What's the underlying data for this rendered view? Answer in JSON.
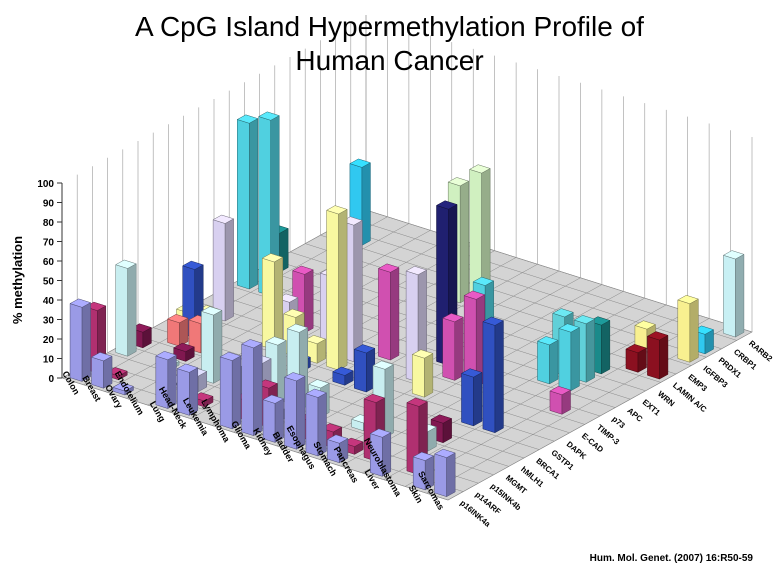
{
  "title_line1": "A CpG Island Hypermethylation Profile of",
  "title_line2": "Human Cancer",
  "citation": "Hum. Mol. Genet. (2007) 16:R50-59",
  "chart_data": {
    "type": "bar",
    "variant": "3d-grouped",
    "ylabel": "% methylation",
    "ylim": [
      0,
      100
    ],
    "yticks": [
      0,
      10,
      20,
      30,
      40,
      50,
      60,
      70,
      80,
      90,
      100
    ],
    "grid": true,
    "cancers": [
      "Colon",
      "Breast",
      "Ovary",
      "Endotelium",
      "Lung",
      "Head-Neck",
      "Leukemia",
      "Lymphoma",
      "Glioma",
      "Kidney",
      "Bladder",
      "Esophagus",
      "Stomach",
      "Pancreas",
      "Liver",
      "Neuroblastoma",
      "Skin",
      "Sarcomas"
    ],
    "genes": [
      "p16INK4a",
      "p14ARF",
      "p15INK4b",
      "MGMT",
      "hMLH1",
      "BRCA1",
      "GSTP1",
      "DAPK",
      "E-CAD",
      "TIMP-3",
      "p73",
      "APC",
      "EXT1",
      "WRN",
      "LAMIN A/C",
      "EMP3",
      "IGFBP3",
      "PRDX1",
      "CRBP1",
      "RARB2"
    ],
    "gene_colors": [
      "#9a9ae6",
      "#b03070",
      "#c8c8f0",
      "#c8eef0",
      "#801850",
      "#f07878",
      "#3050c0",
      "#f8f8a0",
      "#d8d0f0",
      "#d050b0",
      "#202070",
      "#50d0e0",
      "#60d0d8",
      "#1a8a8a",
      "#8b1020",
      "#d0f0c0",
      "#f8f090",
      "#30c8f0",
      "#700020",
      "#c8f0f4"
    ],
    "values": [
      [
        38,
        32,
        0,
        45,
        8,
        0,
        0,
        5,
        0,
        0,
        0,
        85,
        0,
        20,
        0,
        0,
        0,
        0,
        0,
        0
      ],
      [
        14,
        2,
        0,
        0,
        0,
        12,
        35,
        8,
        50,
        0,
        0,
        90,
        0,
        0,
        0,
        0,
        0,
        40,
        0,
        0
      ],
      [
        2,
        0,
        0,
        2,
        5,
        15,
        0,
        0,
        0,
        0,
        0,
        0,
        0,
        0,
        0,
        0,
        0,
        0,
        0,
        0
      ],
      [
        0,
        0,
        1,
        0,
        0,
        0,
        0,
        0,
        0,
        0,
        0,
        0,
        0,
        0,
        0,
        0,
        0,
        0,
        0,
        0
      ],
      [
        25,
        0,
        8,
        35,
        0,
        0,
        0,
        45,
        20,
        30,
        0,
        0,
        0,
        0,
        0,
        0,
        0,
        0,
        0,
        0
      ],
      [
        22,
        3,
        0,
        4,
        0,
        0,
        0,
        20,
        0,
        0,
        0,
        0,
        0,
        0,
        0,
        0,
        0,
        0,
        0,
        0
      ],
      [
        0,
        0,
        20,
        0,
        0,
        0,
        5,
        10,
        40,
        0,
        0,
        0,
        0,
        0,
        0,
        0,
        0,
        0,
        0,
        0
      ],
      [
        35,
        10,
        25,
        30,
        4,
        0,
        0,
        80,
        70,
        0,
        0,
        0,
        0,
        0,
        0,
        60,
        0,
        0,
        0,
        0
      ],
      [
        45,
        20,
        5,
        40,
        0,
        0,
        5,
        0,
        0,
        45,
        0,
        0,
        0,
        0,
        0,
        70,
        0,
        0,
        0,
        0
      ],
      [
        20,
        0,
        0,
        15,
        0,
        0,
        20,
        0,
        0,
        0,
        0,
        0,
        0,
        0,
        0,
        0,
        0,
        0,
        0,
        0
      ],
      [
        35,
        10,
        0,
        0,
        0,
        0,
        0,
        0,
        55,
        0,
        80,
        0,
        0,
        0,
        0,
        0,
        0,
        0,
        0,
        0
      ],
      [
        30,
        8,
        0,
        4,
        0,
        0,
        0,
        20,
        0,
        30,
        0,
        40,
        0,
        0,
        0,
        0,
        0,
        0,
        0,
        0
      ],
      [
        10,
        4,
        0,
        35,
        0,
        0,
        0,
        0,
        0,
        45,
        0,
        0,
        0,
        0,
        0,
        0,
        0,
        0,
        0,
        0
      ],
      [
        0,
        30,
        0,
        0,
        0,
        0,
        0,
        0,
        0,
        0,
        0,
        0,
        0,
        0,
        0,
        0,
        0,
        0,
        0,
        0
      ],
      [
        20,
        0,
        0,
        10,
        10,
        0,
        25,
        0,
        0,
        0,
        0,
        20,
        30,
        0,
        0,
        0,
        0,
        0,
        0,
        0
      ],
      [
        0,
        35,
        0,
        0,
        0,
        0,
        55,
        0,
        0,
        0,
        0,
        30,
        30,
        25,
        0,
        0,
        10,
        0,
        0,
        0
      ],
      [
        15,
        0,
        0,
        0,
        0,
        0,
        0,
        0,
        0,
        10,
        0,
        0,
        0,
        0,
        10,
        0,
        0,
        0,
        0,
        0
      ],
      [
        20,
        0,
        0,
        0,
        0,
        0,
        0,
        0,
        0,
        0,
        0,
        0,
        0,
        0,
        20,
        0,
        30,
        10,
        0,
        40
      ]
    ]
  }
}
